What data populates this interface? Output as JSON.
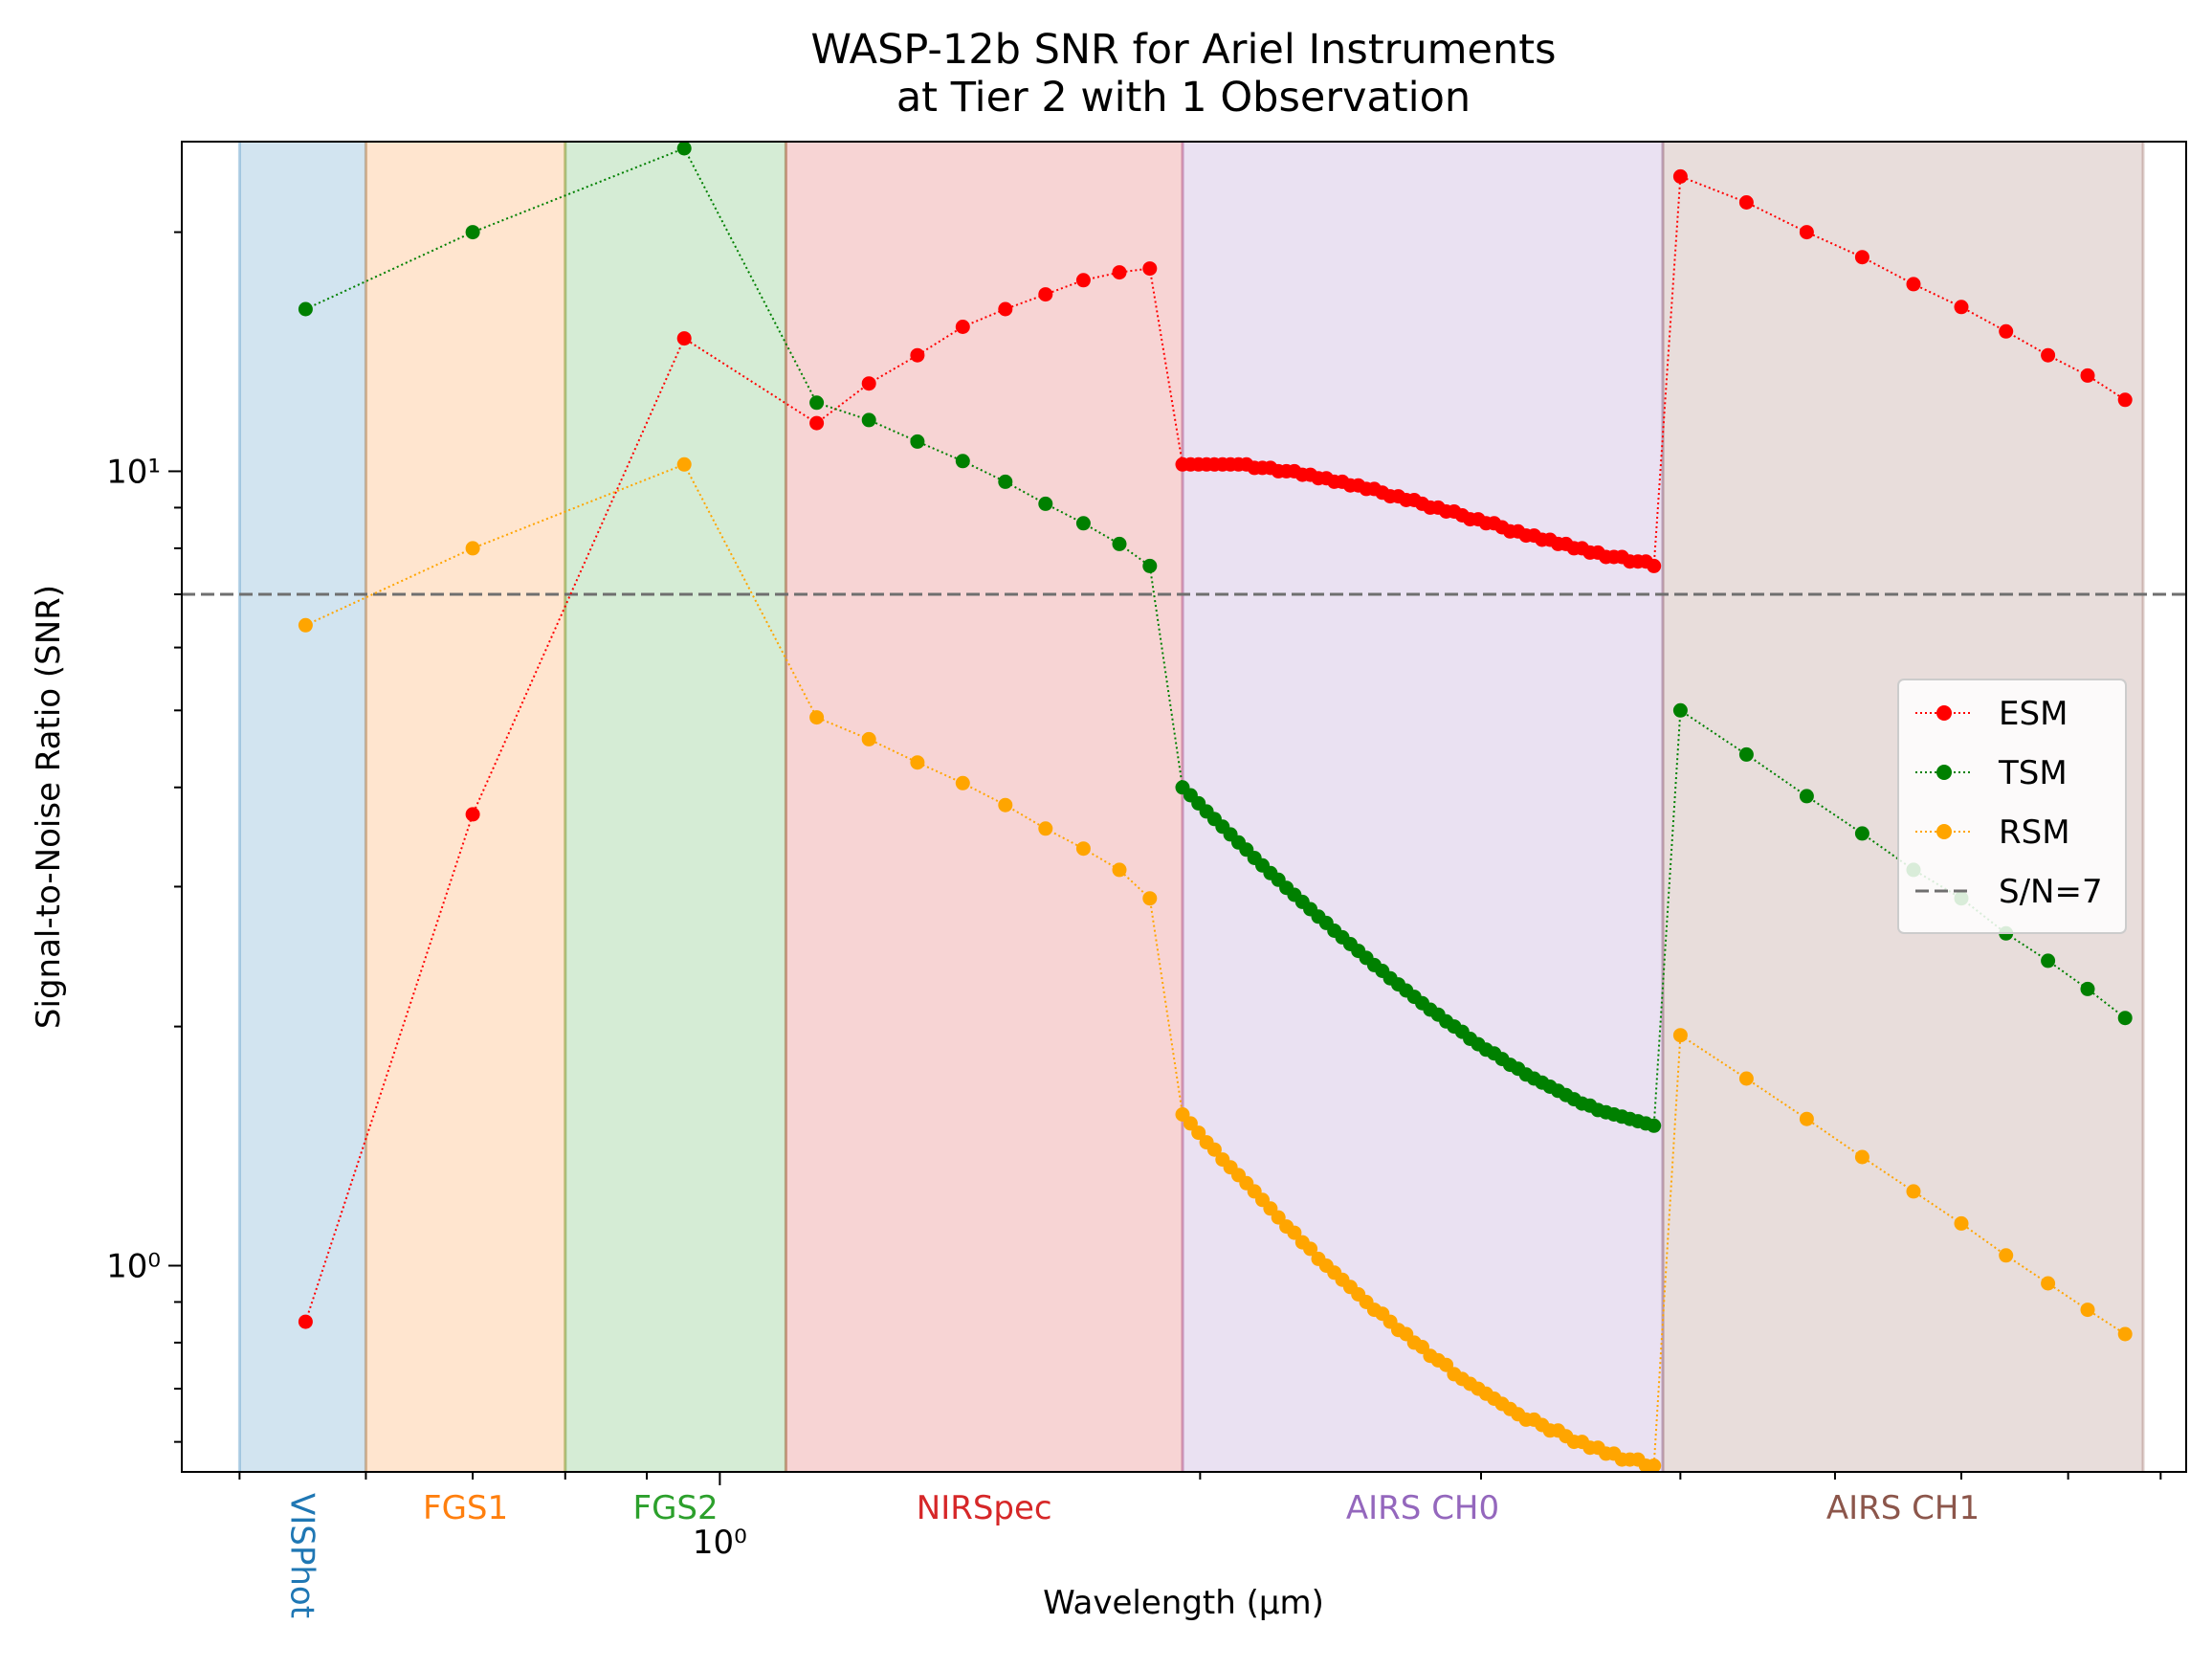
{
  "chart_data": {
    "type": "line",
    "title": "WASP-12b SNR for Ariel Instruments\nat Tier 2 with 1 Observation",
    "xlabel": "Wavelength (μm)",
    "ylabel": "Signal-to-Noise Ratio (SNR)",
    "x_scale": "log",
    "y_scale": "log",
    "xlim": [
      0.46,
      8.3
    ],
    "ylim": [
      0.55,
      26
    ],
    "x_tick_labels": [
      {
        "value": 1.0,
        "label": "10⁰"
      }
    ],
    "y_tick_labels": [
      {
        "value": 1,
        "label": "10⁰"
      },
      {
        "value": 10,
        "label": "10¹"
      }
    ],
    "grid": false,
    "legend_position": "center-right",
    "threshold": {
      "value": 7,
      "label": "S/N=7",
      "color": "#6f6f6f",
      "style": "dashed"
    },
    "instrument_bands": [
      {
        "name": "VISPhot",
        "x_range": [
          0.5,
          0.6
        ],
        "color": "#1f77b4"
      },
      {
        "name": "FGS1",
        "x_range": [
          0.6,
          0.8
        ],
        "color": "#ff7f0e"
      },
      {
        "name": "FGS2",
        "x_range": [
          0.8,
          1.1
        ],
        "color": "#2ca02c"
      },
      {
        "name": "NIRSpec",
        "x_range": [
          1.1,
          1.95
        ],
        "color": "#d62728"
      },
      {
        "name": "AIRS CH0",
        "x_range": [
          1.95,
          3.9
        ],
        "color": "#9467bd"
      },
      {
        "name": "AIRS CH1",
        "x_range": [
          3.9,
          7.8
        ],
        "color": "#8c564b"
      }
    ],
    "series": [
      {
        "name": "ESM",
        "color": "#ff0000",
        "segments": [
          {
            "x": [
              0.55,
              0.7,
              0.95
            ],
            "y": [
              0.85,
              3.7,
              14.7
            ]
          },
          {
            "x": [
              1.15,
              1.24,
              1.33,
              1.42,
              1.51,
              1.6,
              1.69,
              1.78,
              1.86
            ],
            "y": [
              11.5,
              12.9,
              14.0,
              15.2,
              16.0,
              16.7,
              17.4,
              17.8,
              18.0
            ]
          },
          {
            "x_start": 1.95,
            "x_end": 3.85,
            "points": 60,
            "y": [
              10.2,
              10.2,
              10.2,
              10.2,
              10.2,
              10.2,
              10.2,
              10.2,
              10.2,
              10.1,
              10.1,
              10.1,
              10.0,
              10.0,
              10.0,
              9.9,
              9.9,
              9.8,
              9.8,
              9.7,
              9.7,
              9.6,
              9.6,
              9.5,
              9.5,
              9.4,
              9.3,
              9.3,
              9.2,
              9.2,
              9.1,
              9.0,
              9.0,
              8.9,
              8.9,
              8.8,
              8.7,
              8.7,
              8.6,
              8.6,
              8.5,
              8.4,
              8.4,
              8.3,
              8.3,
              8.2,
              8.2,
              8.1,
              8.1,
              8.0,
              8.0,
              7.9,
              7.9,
              7.8,
              7.8,
              7.8,
              7.7,
              7.7,
              7.7,
              7.6
            ]
          },
          {
            "x": [
              4.0,
              4.4,
              4.8,
              5.2,
              5.6,
              6.0,
              6.4,
              6.8,
              7.2,
              7.6
            ],
            "y": [
              23.5,
              21.8,
              20.0,
              18.6,
              17.2,
              16.1,
              15.0,
              14.0,
              13.2,
              12.3
            ]
          }
        ]
      },
      {
        "name": "TSM",
        "color": "#008000",
        "segments": [
          {
            "x": [
              0.55,
              0.7,
              0.95
            ],
            "y": [
              16.0,
              20.0,
              25.5
            ]
          },
          {
            "x": [
              1.15,
              1.24,
              1.33,
              1.42,
              1.51,
              1.6,
              1.69,
              1.78,
              1.86
            ],
            "y": [
              12.2,
              11.6,
              10.9,
              10.3,
              9.7,
              9.1,
              8.6,
              8.1,
              7.6
            ]
          },
          {
            "x_start": 1.95,
            "x_end": 3.85,
            "points": 60,
            "y": [
              4.0,
              3.91,
              3.82,
              3.73,
              3.65,
              3.57,
              3.49,
              3.41,
              3.34,
              3.26,
              3.19,
              3.12,
              3.06,
              2.99,
              2.93,
              2.87,
              2.81,
              2.75,
              2.7,
              2.64,
              2.59,
              2.54,
              2.49,
              2.44,
              2.39,
              2.35,
              2.3,
              2.26,
              2.22,
              2.18,
              2.14,
              2.1,
              2.07,
              2.03,
              2.0,
              1.97,
              1.93,
              1.9,
              1.87,
              1.85,
              1.82,
              1.79,
              1.77,
              1.74,
              1.72,
              1.7,
              1.68,
              1.66,
              1.64,
              1.62,
              1.6,
              1.59,
              1.57,
              1.56,
              1.55,
              1.54,
              1.53,
              1.52,
              1.51,
              1.5
            ]
          },
          {
            "x": [
              4.0,
              4.4,
              4.8,
              5.2,
              5.6,
              6.0,
              6.4,
              6.8,
              7.2,
              7.6
            ],
            "y": [
              5.0,
              4.4,
              3.9,
              3.5,
              3.15,
              2.9,
              2.62,
              2.42,
              2.23,
              2.05
            ]
          }
        ]
      },
      {
        "name": "RSM",
        "color": "#ffa500",
        "segments": [
          {
            "x": [
              0.55,
              0.7,
              0.95
            ],
            "y": [
              6.4,
              8.0,
              10.2
            ]
          },
          {
            "x": [
              1.15,
              1.24,
              1.33,
              1.42,
              1.51,
              1.6,
              1.69,
              1.78,
              1.86
            ],
            "y": [
              4.9,
              4.6,
              4.3,
              4.05,
              3.8,
              3.55,
              3.35,
              3.15,
              2.9
            ]
          },
          {
            "x_start": 1.95,
            "x_end": 3.85,
            "points": 60,
            "y": [
              1.55,
              1.51,
              1.47,
              1.43,
              1.4,
              1.36,
              1.33,
              1.3,
              1.27,
              1.24,
              1.21,
              1.18,
              1.15,
              1.12,
              1.1,
              1.07,
              1.05,
              1.02,
              1.0,
              0.98,
              0.96,
              0.94,
              0.92,
              0.9,
              0.88,
              0.87,
              0.85,
              0.83,
              0.82,
              0.8,
              0.79,
              0.77,
              0.76,
              0.75,
              0.73,
              0.72,
              0.71,
              0.7,
              0.69,
              0.68,
              0.67,
              0.66,
              0.65,
              0.64,
              0.64,
              0.63,
              0.62,
              0.62,
              0.61,
              0.6,
              0.6,
              0.59,
              0.59,
              0.58,
              0.58,
              0.57,
              0.57,
              0.57,
              0.56,
              0.56
            ]
          },
          {
            "x": [
              4.0,
              4.4,
              4.8,
              5.2,
              5.6,
              6.0,
              6.4,
              6.8,
              7.2,
              7.6
            ],
            "y": [
              1.95,
              1.72,
              1.53,
              1.37,
              1.24,
              1.13,
              1.03,
              0.95,
              0.88,
              0.82
            ]
          }
        ]
      }
    ]
  }
}
